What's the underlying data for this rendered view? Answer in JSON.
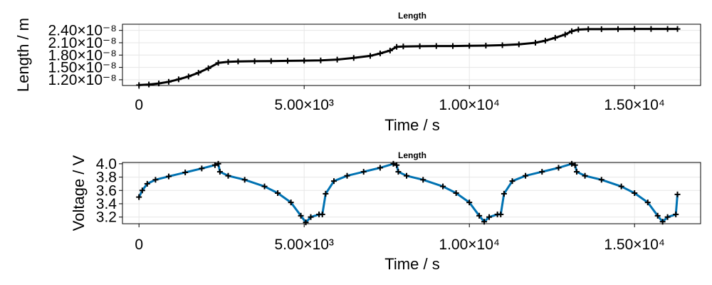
{
  "chart_data": [
    {
      "type": "line",
      "title": "Length",
      "xlabel": "Time / s",
      "ylabel": "Length / m",
      "xlim": [
        -500,
        17000
      ],
      "ylim": [
        1.06e-08,
        2.55e-08
      ],
      "xticks": [
        0,
        5000,
        10000,
        15000
      ],
      "xtick_labels": [
        "0",
        "5.00×10³",
        "1.00×10⁴",
        "1.50×10⁴"
      ],
      "yticks": [
        1.2e-08,
        1.5e-08,
        1.8e-08,
        2.1e-08,
        2.4e-08
      ],
      "ytick_labels": [
        "1.20×10⁻⁸",
        "1.50×10⁻⁸",
        "1.80×10⁻⁸",
        "2.10×10⁻⁸",
        "2.40×10⁻⁸"
      ],
      "grid": true,
      "series": [
        {
          "color": "#000000",
          "marker": "+",
          "x": [
            0,
            300,
            600,
            900,
            1200,
            1500,
            1800,
            2100,
            2400,
            2700,
            3000,
            3500,
            4000,
            4500,
            5000,
            5500,
            6000,
            6500,
            7000,
            7300,
            7600,
            7800,
            8000,
            8500,
            9000,
            9500,
            10000,
            10500,
            11000,
            11500,
            12000,
            12300,
            12600,
            12900,
            13100,
            13300,
            13600,
            14000,
            14500,
            15000,
            15500,
            16000,
            16300
          ],
          "y": [
            1.07e-08,
            1.085e-08,
            1.11e-08,
            1.15e-08,
            1.21e-08,
            1.28e-08,
            1.37e-08,
            1.48e-08,
            1.61e-08,
            1.635e-08,
            1.645e-08,
            1.65e-08,
            1.655e-08,
            1.66e-08,
            1.665e-08,
            1.67e-08,
            1.69e-08,
            1.73e-08,
            1.78e-08,
            1.84e-08,
            1.91e-08,
            2e-08,
            2.01e-08,
            2.015e-08,
            2.02e-08,
            2.02e-08,
            2.025e-08,
            2.03e-08,
            2.04e-08,
            2.06e-08,
            2.1e-08,
            2.15e-08,
            2.22e-08,
            2.3e-08,
            2.38e-08,
            2.42e-08,
            2.43e-08,
            2.43e-08,
            2.432e-08,
            2.435e-08,
            2.435e-08,
            2.435e-08,
            2.435e-08
          ]
        }
      ]
    },
    {
      "type": "line",
      "title": "Length",
      "xlabel": "Time / s",
      "ylabel": "Voltage / V",
      "xlim": [
        -500,
        17000
      ],
      "ylim": [
        3.1,
        4.02
      ],
      "xticks": [
        0,
        5000,
        10000,
        15000
      ],
      "xtick_labels": [
        "0",
        "5.00×10³",
        "1.00×10⁴",
        "1.50×10⁴"
      ],
      "yticks": [
        3.2,
        3.4,
        3.6,
        3.8,
        4.0
      ],
      "ytick_labels": [
        "3.2",
        "3.4",
        "3.6",
        "3.8",
        "4.0"
      ],
      "grid": true,
      "series": [
        {
          "color": "#0072b2",
          "marker": "+",
          "x": [
            0,
            100,
            250,
            500,
            900,
            1400,
            1900,
            2300,
            2400,
            2450,
            2700,
            3200,
            3800,
            4200,
            4600,
            4900,
            5050,
            5200,
            5450,
            5550,
            5650,
            5900,
            6300,
            6800,
            7300,
            7700,
            7800,
            7850,
            8100,
            8600,
            9200,
            9600,
            10000,
            10300,
            10450,
            10600,
            10850,
            10950,
            11050,
            11300,
            11700,
            12200,
            12700,
            13100,
            13200,
            13250,
            13500,
            14000,
            14600,
            15000,
            15400,
            15700,
            15850,
            16000,
            16250,
            16300
          ],
          "y": [
            3.5,
            3.6,
            3.7,
            3.76,
            3.81,
            3.87,
            3.93,
            3.98,
            4.0,
            3.88,
            3.82,
            3.76,
            3.66,
            3.56,
            3.42,
            3.22,
            3.12,
            3.2,
            3.24,
            3.24,
            3.55,
            3.74,
            3.82,
            3.88,
            3.94,
            4.0,
            3.98,
            3.88,
            3.82,
            3.76,
            3.66,
            3.56,
            3.42,
            3.22,
            3.13,
            3.2,
            3.24,
            3.24,
            3.55,
            3.74,
            3.82,
            3.88,
            3.94,
            4.0,
            3.98,
            3.88,
            3.82,
            3.76,
            3.66,
            3.56,
            3.42,
            3.22,
            3.13,
            3.2,
            3.24,
            3.54
          ]
        }
      ]
    }
  ]
}
